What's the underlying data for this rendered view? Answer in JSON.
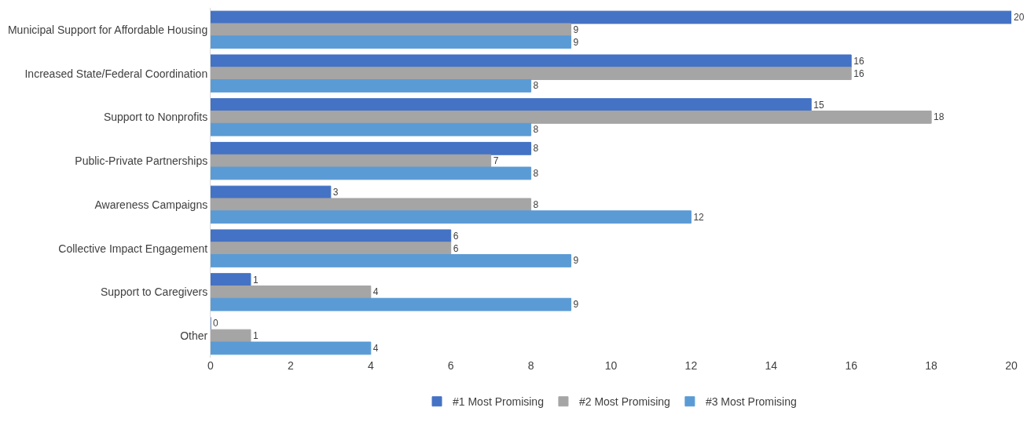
{
  "chart_data": {
    "type": "bar",
    "orientation": "horizontal",
    "categories": [
      "Municipal Support for Affordable Housing",
      "Increased State/Federal Coordination",
      "Support to Nonprofits",
      "Public-Private Partnerships",
      "Awareness Campaigns",
      "Collective Impact Engagement",
      "Support to Caregivers",
      "Other"
    ],
    "series": [
      {
        "name": "#1 Most Promising",
        "color": "#4472c4",
        "values": [
          20,
          16,
          15,
          8,
          3,
          6,
          1,
          0
        ]
      },
      {
        "name": "#2 Most Promising",
        "color": "#a5a5a5",
        "values": [
          9,
          16,
          18,
          7,
          8,
          6,
          4,
          1
        ]
      },
      {
        "name": "#3 Most Promising",
        "color": "#5b9bd5",
        "values": [
          9,
          8,
          8,
          8,
          12,
          9,
          9,
          4
        ]
      }
    ],
    "xlim": [
      0,
      20
    ],
    "xticks": [
      0,
      2,
      4,
      6,
      8,
      10,
      12,
      14,
      16,
      18,
      20
    ],
    "data_labels": true,
    "legend": "bottom"
  }
}
